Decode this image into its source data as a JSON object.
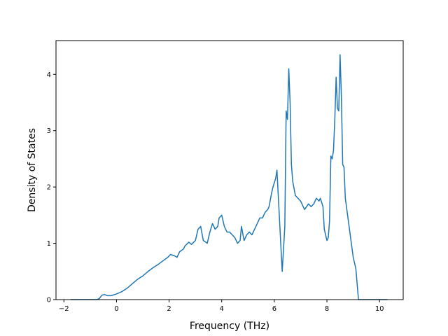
{
  "chart_data": {
    "type": "line",
    "xlabel": "Frequency (THz)",
    "ylabel": "Density of States",
    "xlim": [
      -2.3,
      10.9
    ],
    "ylim": [
      0,
      4.6
    ],
    "x_ticks": [
      -2,
      0,
      2,
      4,
      6,
      8,
      10
    ],
    "y_ticks": [
      0,
      1,
      2,
      3,
      4
    ],
    "x_tick_labels": [
      "−2",
      "0",
      "2",
      "4",
      "6",
      "8",
      "10"
    ],
    "y_tick_labels": [
      "0",
      "1",
      "2",
      "3",
      "4"
    ],
    "grid": false,
    "line_color": "#1f77b4",
    "series": [
      {
        "x": [
          -1.75,
          -0.75,
          -0.65,
          -0.55,
          -0.45,
          -0.35,
          -0.2,
          0.0,
          0.2,
          0.4,
          0.6,
          0.8,
          1.0,
          1.2,
          1.4,
          1.6,
          1.8,
          1.95,
          2.05,
          2.2,
          2.3,
          2.4,
          2.55,
          2.6,
          2.75,
          2.85,
          3.0,
          3.1,
          3.2,
          3.3,
          3.45,
          3.55,
          3.65,
          3.75,
          3.85,
          3.9,
          4.0,
          4.1,
          4.2,
          4.3,
          4.4,
          4.5,
          4.6,
          4.7,
          4.75,
          4.85,
          4.95,
          5.05,
          5.15,
          5.3,
          5.45,
          5.55,
          5.65,
          5.75,
          5.8,
          5.9,
          5.95,
          6.05,
          6.1,
          6.3,
          6.4,
          6.45,
          6.5,
          6.55,
          6.6,
          6.65,
          6.7,
          6.8,
          6.9,
          7.0,
          7.1,
          7.15,
          7.3,
          7.4,
          7.5,
          7.55,
          7.6,
          7.7,
          7.75,
          7.85,
          7.9,
          8.0,
          8.05,
          8.1,
          8.15,
          8.2,
          8.25,
          8.3,
          8.35,
          8.4,
          8.45,
          8.5,
          8.55,
          8.6,
          8.65,
          8.7,
          8.8,
          8.9,
          9.0,
          9.1,
          9.2,
          9.3,
          9.35,
          9.5,
          10.3
        ],
        "y": [
          0,
          0,
          0.02,
          0.08,
          0.09,
          0.07,
          0.07,
          0.1,
          0.14,
          0.2,
          0.28,
          0.36,
          0.42,
          0.5,
          0.57,
          0.63,
          0.7,
          0.75,
          0.8,
          0.78,
          0.75,
          0.85,
          0.9,
          0.95,
          1.02,
          0.98,
          1.05,
          1.25,
          1.3,
          1.05,
          1.0,
          1.2,
          1.35,
          1.25,
          1.3,
          1.45,
          1.5,
          1.3,
          1.2,
          1.2,
          1.15,
          1.1,
          1.0,
          1.05,
          1.3,
          1.05,
          1.15,
          1.2,
          1.15,
          1.3,
          1.45,
          1.45,
          1.55,
          1.6,
          1.65,
          1.9,
          2.0,
          2.15,
          2.3,
          0.5,
          1.3,
          3.35,
          3.2,
          4.1,
          3.5,
          2.4,
          2.1,
          1.85,
          1.8,
          1.75,
          1.65,
          1.6,
          1.7,
          1.65,
          1.7,
          1.75,
          1.8,
          1.75,
          1.8,
          1.65,
          1.25,
          1.05,
          1.1,
          1.4,
          2.55,
          2.5,
          2.65,
          3.2,
          3.95,
          3.4,
          3.35,
          4.35,
          3.6,
          2.4,
          2.35,
          1.8,
          1.45,
          1.1,
          0.75,
          0.55,
          0.0,
          0.0,
          0.0,
          0.0,
          0.0
        ]
      }
    ]
  }
}
